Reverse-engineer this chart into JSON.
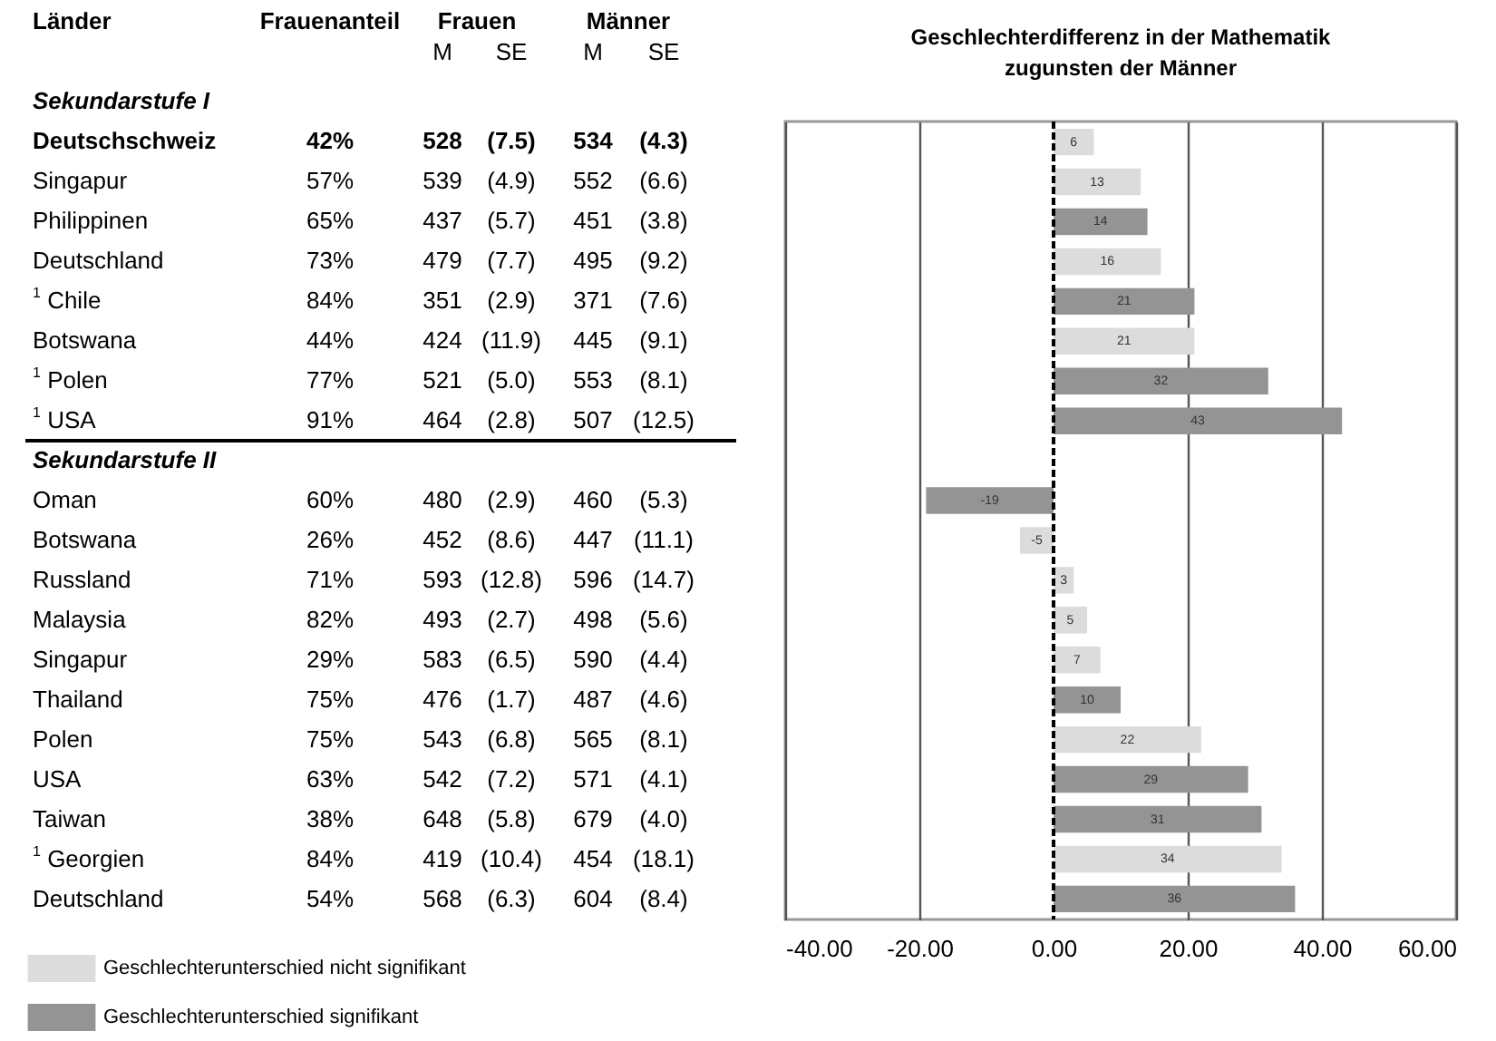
{
  "chart_data": [
    {
      "type": "other",
      "categories": [
        "Frauenanteil",
        "M",
        "SE",
        "M",
        "SE"
      ],
      "annotations": [
        "Länder",
        "Frauen",
        "Männer"
      ],
      "y_categories": [
        "Sekundarstufe I",
        "Deutschschweiz",
        "Singapur",
        "Philippinen",
        "Deutschland",
        "$^{1}$ Chile",
        "Botswana",
        "$^{1}$ Polen",
        "$^{1}$ USA",
        "Sekundarstufe II",
        "Oman",
        "Botswana",
        "Russland",
        "Malaysia",
        "Singapur",
        "Thailand",
        "Polen",
        "USA",
        "Taiwan",
        "$^{1}$ Georgien",
        "Deutschland"
      ],
      "cells": [
        [
          null,
          null,
          null,
          null,
          null
        ],
        [
          "42%",
          "528",
          "(7.5)",
          "534",
          "(4.3)"
        ],
        [
          "57%",
          "539",
          "(4.9)",
          "552",
          "(6.6)"
        ],
        [
          "65%",
          "437",
          "(5.7)",
          "451",
          "(3.8)"
        ],
        [
          "73%",
          "479",
          "(7.7)",
          "495",
          "(9.2)"
        ],
        [
          "84%",
          "351",
          "(2.9)",
          "371",
          "(7.6)"
        ],
        [
          "44%",
          "424",
          "(11.9)",
          "445",
          "(9.1)"
        ],
        [
          "77%",
          "521",
          "(5.0)",
          "553",
          "(8.1)"
        ],
        [
          "91%",
          "464",
          "(2.8)",
          "507",
          "(12.5)"
        ],
        [
          null,
          null,
          null,
          null,
          null
        ],
        [
          "60%",
          "480",
          "(2.9)",
          "460",
          "(5.3)"
        ],
        [
          "26%",
          "452",
          "(8.6)",
          "447",
          "(11.1)"
        ],
        [
          "71%",
          "593",
          "(12.8)",
          "596",
          "(14.7)"
        ],
        [
          "82%",
          "493",
          "(2.7)",
          "498",
          "(5.6)"
        ],
        [
          "29%",
          "583",
          "(6.5)",
          "590",
          "(4.4)"
        ],
        [
          "75%",
          "476",
          "(1.7)",
          "487",
          "(4.6)"
        ],
        [
          "75%",
          "543",
          "(6.8)",
          "565",
          "(8.1)"
        ],
        [
          "63%",
          "542",
          "(7.2)",
          "571",
          "(4.1)"
        ],
        [
          "38%",
          "648",
          "(5.8)",
          "679",
          "(4.0)"
        ],
        [
          "84%",
          "419",
          "(10.4)",
          "454",
          "(18.1)"
        ],
        [
          "54%",
          "568",
          "(6.3)",
          "604",
          "(8.4)"
        ]
      ]
    },
    {
      "type": "bar",
      "orientation": "horizontal",
      "title": "Geschlechterdifferenz in der Mathematik",
      "subtitle": "zugunsten der Männer",
      "categories": [
        null,
        null,
        null,
        null,
        null,
        null,
        null,
        null,
        null,
        null,
        null,
        null,
        null,
        null,
        null,
        null,
        null,
        null,
        null,
        null
      ],
      "series": [
        {
          "name": "Geschlechterunterschied nicht signifikant",
          "color": "#dcdcdc",
          "values": [
            6,
            13,
            null,
            16,
            null,
            21,
            null,
            null,
            null,
            null,
            -5,
            3,
            5,
            7,
            null,
            22,
            null,
            null,
            34,
            null
          ]
        },
        {
          "name": "Geschlechterunterschied signifikant",
          "color": "#949494",
          "values": [
            null,
            null,
            14,
            null,
            21,
            null,
            32,
            43,
            null,
            -19,
            null,
            null,
            null,
            null,
            10,
            null,
            29,
            31,
            null,
            36
          ]
        }
      ],
      "xlim": [
        -40,
        60
      ],
      "xticks": [
        {
          "value": -40,
          "label": "-40.00"
        },
        {
          "value": -20,
          "label": "-20.00"
        },
        {
          "value": 0,
          "label": "0.00"
        },
        {
          "value": 20,
          "label": "20.00"
        },
        {
          "value": 40,
          "label": "40.00"
        },
        {
          "value": 60,
          "label": "60.00"
        }
      ],
      "grid": "x",
      "ref_lines": [
        {
          "axis": "x",
          "value": 0,
          "color": "#000000",
          "line_style": "dashed"
        }
      ],
      "legend": "bottom left",
      "data_labels": true,
      "tick_labels": "x"
    }
  ]
}
